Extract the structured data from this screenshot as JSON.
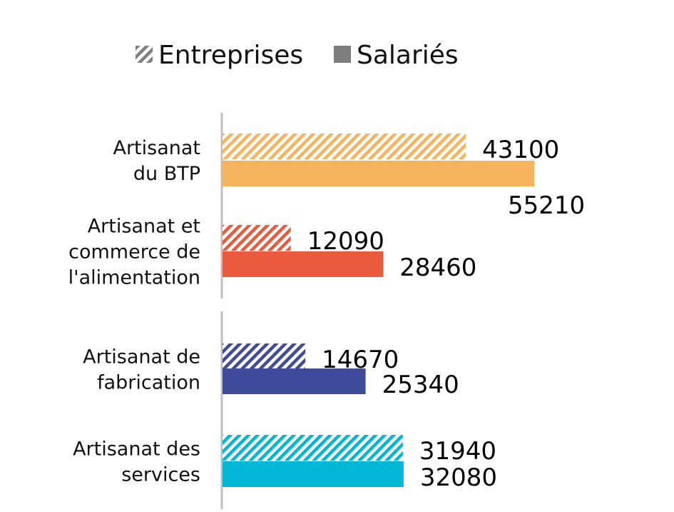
{
  "chart_data": {
    "type": "bar",
    "orientation": "horizontal",
    "categories": [
      [
        "Artisanat",
        "du BTP"
      ],
      [
        "Artisanat et",
        "commerce de",
        "l'alimentation"
      ],
      [
        "Artisanat de",
        "fabrication"
      ],
      [
        "Artisanat des",
        "services"
      ]
    ],
    "series": [
      {
        "name": "Entreprises",
        "pattern": "hatched",
        "values": [
          43100,
          12090,
          14670,
          31940
        ],
        "value_labels": [
          "43100",
          "12090",
          "14670",
          "31940"
        ]
      },
      {
        "name": "Salariés",
        "pattern": "solid",
        "values": [
          55210,
          28460,
          25340,
          32080
        ],
        "value_labels": [
          "55210",
          "28460",
          "25340",
          "32080"
        ]
      }
    ],
    "category_colors": [
      "#f7b45c",
      "#eb5a3c",
      "#414b9b",
      "#00b8d6"
    ],
    "legend": {
      "position": "top",
      "entries": [
        "Entreprises",
        "Salariés"
      ],
      "swatch_color": "#7f7f7f"
    },
    "xlim": [
      0,
      55210
    ],
    "axis_line_color": "#bfbfbf",
    "grid": false,
    "title": "",
    "xlabel": "",
    "ylabel": ""
  }
}
